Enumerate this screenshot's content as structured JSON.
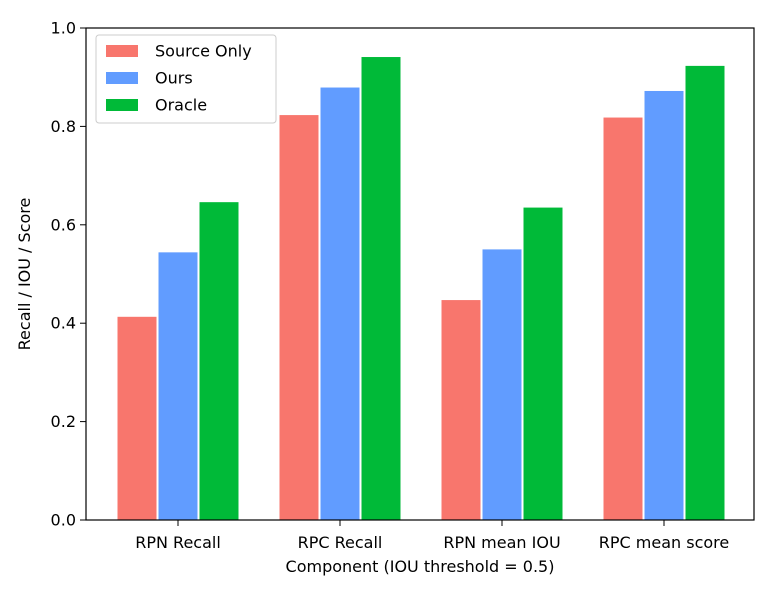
{
  "chart_data": {
    "type": "bar",
    "categories": [
      "RPN Recall",
      "RPC Recall",
      "RPN mean IOU",
      "RPC mean score"
    ],
    "series": [
      {
        "name": "Source Only",
        "color": "#f8766d",
        "values": [
          0.413,
          0.823,
          0.447,
          0.818
        ]
      },
      {
        "name": "Ours",
        "color": "#619cff",
        "values": [
          0.544,
          0.879,
          0.55,
          0.872
        ]
      },
      {
        "name": "Oracle",
        "color": "#00ba38",
        "values": [
          0.646,
          0.941,
          0.635,
          0.923
        ]
      }
    ],
    "xlabel": "Component (IOU threshold = 0.5)",
    "ylabel": "Recall / IOU / Score",
    "ylim": [
      0.0,
      1.0
    ],
    "yticks": [
      "0.0",
      "0.2",
      "0.4",
      "0.6",
      "0.8",
      "1.0"
    ],
    "grid": false,
    "legend_position": "top-left"
  }
}
